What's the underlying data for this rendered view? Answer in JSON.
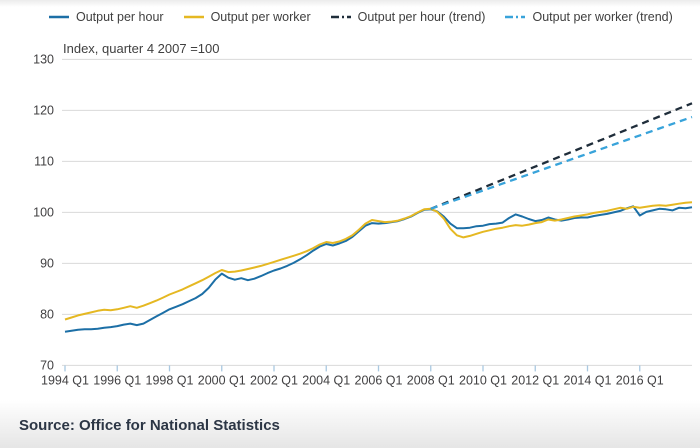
{
  "legend": {
    "items": [
      {
        "label": "Output per hour",
        "color": "#1c6fa6",
        "swatch_dash": ""
      },
      {
        "label": "Output per worker",
        "color": "#e5b822",
        "swatch_dash": ""
      },
      {
        "label": "Output per hour (trend)",
        "color": "#1f2d3a",
        "swatch_dash": "9 4 2 4"
      },
      {
        "label": "Output per worker (trend)",
        "color": "#38a3da",
        "swatch_dash": "9 4 2 4"
      }
    ]
  },
  "subtitle": "Index, quarter 4 2007 =100",
  "source": "Source: Office for National Statistics",
  "colors": {
    "gridline": "#d9d9d9",
    "tick": "#a9c8e1",
    "axis_text": "#414042",
    "background": "#ffffff"
  },
  "chart_data": {
    "type": "line",
    "title": "",
    "xlabel": "",
    "ylabel": "Index, quarter 4 2007 =100",
    "frequency": "quarterly",
    "x_start": "1994 Q1",
    "x_end": "2018 Q1",
    "ylim": [
      70,
      130
    ],
    "y_ticks": [
      70,
      80,
      90,
      100,
      110,
      120,
      130
    ],
    "x_tick_labels": [
      "1994 Q1",
      "1996 Q1",
      "1998 Q1",
      "2000 Q1",
      "2002 Q1",
      "2004 Q1",
      "2006 Q1",
      "2008 Q1",
      "2010 Q1",
      "2012 Q1",
      "2014 Q1",
      "2016 Q1"
    ],
    "x_tick_every_n_points": 8,
    "grid": true,
    "legend_position": "top",
    "series": [
      {
        "name": "Output per hour",
        "color": "#1c6fa6",
        "dash": "",
        "width": 2,
        "values": [
          76.6,
          76.8,
          77.0,
          77.1,
          77.1,
          77.2,
          77.4,
          77.5,
          77.7,
          78.0,
          78.2,
          77.9,
          78.2,
          78.9,
          79.6,
          80.3,
          81.0,
          81.5,
          82.0,
          82.6,
          83.2,
          84.0,
          85.2,
          86.8,
          88.0,
          87.2,
          86.8,
          87.1,
          86.7,
          87.0,
          87.5,
          88.1,
          88.6,
          89.0,
          89.5,
          90.1,
          90.8,
          91.6,
          92.5,
          93.3,
          93.8,
          93.5,
          93.9,
          94.4,
          95.2,
          96.3,
          97.4,
          97.9,
          97.8,
          97.9,
          98.1,
          98.3,
          98.7,
          99.2,
          99.9,
          100.5,
          100.6,
          100.2,
          99.2,
          97.8,
          96.9,
          96.9,
          97.0,
          97.3,
          97.4,
          97.7,
          97.8,
          98.0,
          98.9,
          99.6,
          99.2,
          98.7,
          98.3,
          98.5,
          99.0,
          98.6,
          98.4,
          98.6,
          98.9,
          99.0,
          99.0,
          99.3,
          99.5,
          99.7,
          100.0,
          100.3,
          100.8,
          101.2,
          99.4,
          100.1,
          100.4,
          100.7,
          100.6,
          100.4,
          100.9,
          100.8,
          101.0
        ]
      },
      {
        "name": "Output per worker",
        "color": "#e5b822",
        "dash": "",
        "width": 2,
        "values": [
          79.0,
          79.4,
          79.8,
          80.1,
          80.4,
          80.7,
          80.9,
          80.8,
          81.0,
          81.3,
          81.6,
          81.3,
          81.7,
          82.2,
          82.7,
          83.3,
          83.9,
          84.4,
          84.9,
          85.5,
          86.1,
          86.7,
          87.4,
          88.1,
          88.7,
          88.3,
          88.4,
          88.6,
          88.9,
          89.2,
          89.5,
          89.9,
          90.3,
          90.7,
          91.1,
          91.5,
          91.9,
          92.4,
          93.0,
          93.7,
          94.2,
          94.0,
          94.3,
          94.8,
          95.5,
          96.6,
          97.8,
          98.5,
          98.3,
          98.1,
          98.2,
          98.4,
          98.8,
          99.3,
          100.0,
          100.6,
          100.7,
          100.1,
          98.8,
          96.8,
          95.5,
          95.1,
          95.4,
          95.8,
          96.2,
          96.5,
          96.8,
          97.0,
          97.3,
          97.5,
          97.4,
          97.6,
          97.9,
          98.1,
          98.6,
          98.4,
          98.6,
          98.9,
          99.2,
          99.4,
          99.6,
          99.9,
          100.1,
          100.3,
          100.6,
          100.9,
          100.7,
          101.1,
          100.9,
          101.1,
          101.3,
          101.4,
          101.3,
          101.5,
          101.7,
          101.9,
          102.0
        ]
      },
      {
        "name": "Output per hour (trend)",
        "color": "#1f2d3a",
        "dash": "7 5",
        "width": 2.3,
        "trend": {
          "start_label": "2008 Q1",
          "start_index": 56,
          "start_value": 100.7,
          "end_value": 121.4
        }
      },
      {
        "name": "Output per worker (trend)",
        "color": "#38a3da",
        "dash": "7 5",
        "width": 2.3,
        "trend": {
          "start_label": "2008 Q1",
          "start_index": 56,
          "start_value": 100.7,
          "end_value": 118.7
        }
      }
    ]
  }
}
